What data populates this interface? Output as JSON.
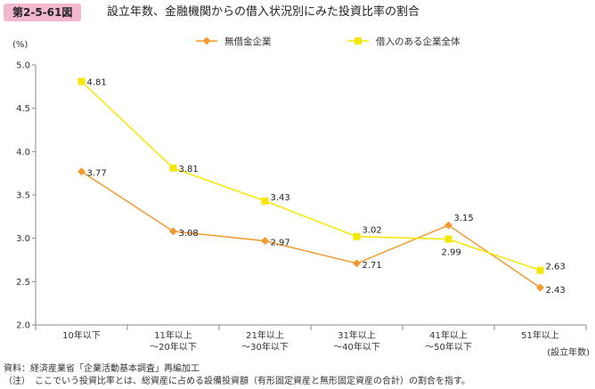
{
  "header": {
    "figure_label": "第2-5-61図",
    "title": "設立年数、金融機関からの借入状況別にみた投資比率の割合"
  },
  "notes": {
    "source": "資料：経済産業省「企業活動基本調査」再編加工",
    "note": "（注）　ここでいう投資比率とは、総資産に占める設備投資額（有形固定資産と無形固定資産の合計）の割合を指す。"
  },
  "colors": {
    "series_1": "#f29a2e",
    "series_2": "#f7e600",
    "badge": "#f2b7cf",
    "axis": "#888888"
  },
  "chart_data": {
    "type": "line",
    "title": "",
    "ylabel": "(%)",
    "xlabel": "(設立年数)",
    "ylim": [
      2.0,
      5.0
    ],
    "yticks": [
      "5.0",
      "4.5",
      "4.0",
      "3.5",
      "3.0",
      "2.5",
      "2.0"
    ],
    "categories": [
      [
        "10年以下"
      ],
      [
        "11年以上",
        "～20年以下"
      ],
      [
        "21年以上",
        "～30年以下"
      ],
      [
        "31年以上",
        "～40年以下"
      ],
      [
        "41年以上",
        "～50年以下"
      ],
      [
        "51年以上"
      ]
    ],
    "legend_position": "top",
    "series": [
      {
        "name": "無借金企業",
        "marker": "diamond",
        "values": [
          3.77,
          3.08,
          2.97,
          2.71,
          3.15,
          2.43
        ],
        "labels": [
          "3.77",
          "3.08",
          "2.97",
          "2.71",
          "3.15",
          "2.43"
        ]
      },
      {
        "name": "借入のある企業全体",
        "marker": "square",
        "values": [
          4.81,
          3.81,
          3.43,
          3.02,
          2.99,
          2.63
        ],
        "labels": [
          "4.81",
          "3.81",
          "3.43",
          "3.02",
          "2.99",
          "2.63"
        ]
      }
    ]
  }
}
